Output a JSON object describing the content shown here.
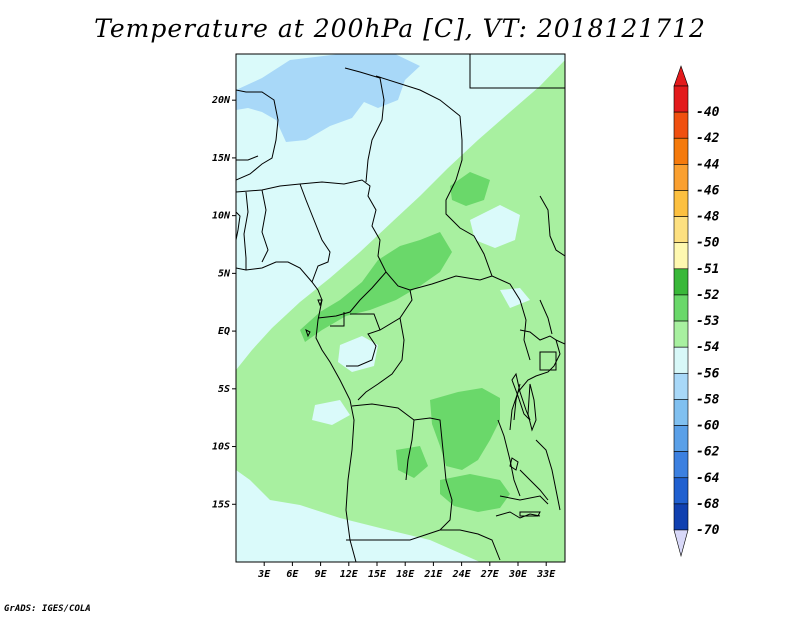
{
  "title": "Temperature at 200hPa [C], VT: 2018121712",
  "credit": "GrADS: IGES/COLA",
  "map": {
    "lat_range": [
      -20,
      24
    ],
    "lon_range": [
      0,
      35
    ],
    "lat_ticks": [
      {
        "value": 20,
        "label": "20N"
      },
      {
        "value": 15,
        "label": "15N"
      },
      {
        "value": 10,
        "label": "10N"
      },
      {
        "value": 5,
        "label": "5N"
      },
      {
        "value": 0,
        "label": "EQ"
      },
      {
        "value": -5,
        "label": "5S"
      },
      {
        "value": -10,
        "label": "10S"
      },
      {
        "value": -15,
        "label": "15S"
      }
    ],
    "lon_ticks": [
      {
        "value": 3,
        "label": "3E"
      },
      {
        "value": 6,
        "label": "6E"
      },
      {
        "value": 9,
        "label": "9E"
      },
      {
        "value": 12,
        "label": "12E"
      },
      {
        "value": 15,
        "label": "15E"
      },
      {
        "value": 18,
        "label": "18E"
      },
      {
        "value": 21,
        "label": "21E"
      },
      {
        "value": 24,
        "label": "24E"
      },
      {
        "value": 27,
        "label": "27E"
      },
      {
        "value": 30,
        "label": "30E"
      },
      {
        "value": 33,
        "label": "33E"
      }
    ]
  },
  "colorbar": {
    "levels": [
      {
        "label": "-40",
        "color": "#e31a1c"
      },
      {
        "label": "-42",
        "color": "#f05010"
      },
      {
        "label": "-44",
        "color": "#f57a0c"
      },
      {
        "label": "-46",
        "color": "#faa030"
      },
      {
        "label": "-48",
        "color": "#fcc040"
      },
      {
        "label": "-50",
        "color": "#fde080"
      },
      {
        "label": "-51",
        "color": "#fef8b0"
      },
      {
        "label": "-52",
        "color": "#39b839"
      },
      {
        "label": "-53",
        "color": "#6ad86a"
      },
      {
        "label": "-54",
        "color": "#a8f0a0"
      },
      {
        "label": "-56",
        "color": "#d8f8f8"
      },
      {
        "label": "-58",
        "color": "#a8d8f8"
      },
      {
        "label": "-60",
        "color": "#80c0f0"
      },
      {
        "label": "-62",
        "color": "#5aa0e8"
      },
      {
        "label": "-64",
        "color": "#3c80e0"
      },
      {
        "label": "-68",
        "color": "#2060d0"
      },
      {
        "label": "-70",
        "color": "#1040b0"
      }
    ],
    "under_color": "#0a1a70",
    "over_color": "#e31a1c",
    "below_color": "#d8d8f8"
  }
}
